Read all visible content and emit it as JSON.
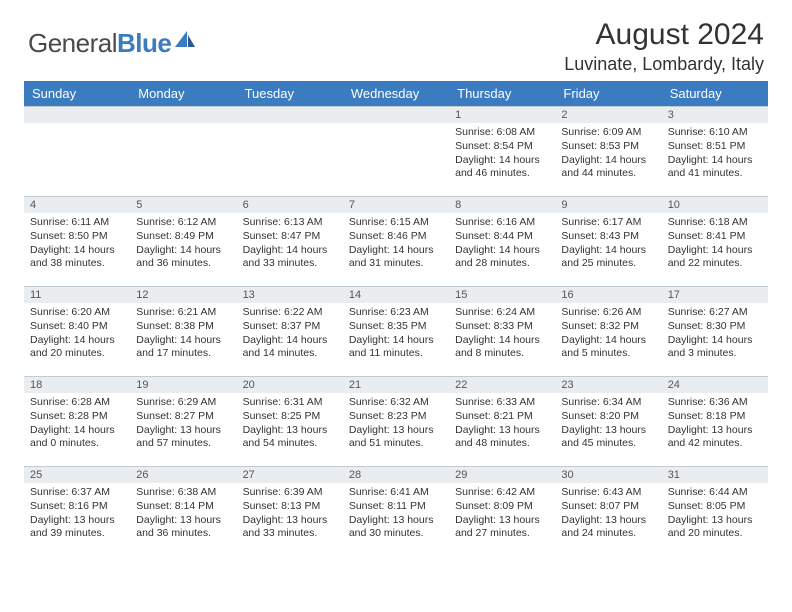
{
  "logo": {
    "text_gray": "General",
    "text_blue": "Blue"
  },
  "title": "August 2024",
  "location": "Luvinate, Lombardy, Italy",
  "colors": {
    "header_bg": "#3b7bbf",
    "header_text": "#ffffff",
    "daynum_bg": "#e9edf0",
    "border": "#c0cbd4",
    "text": "#333333"
  },
  "day_headers": [
    "Sunday",
    "Monday",
    "Tuesday",
    "Wednesday",
    "Thursday",
    "Friday",
    "Saturday"
  ],
  "weeks": [
    [
      {
        "n": "",
        "l": []
      },
      {
        "n": "",
        "l": []
      },
      {
        "n": "",
        "l": []
      },
      {
        "n": "",
        "l": []
      },
      {
        "n": "1",
        "l": [
          "Sunrise: 6:08 AM",
          "Sunset: 8:54 PM",
          "Daylight: 14 hours",
          "and 46 minutes."
        ]
      },
      {
        "n": "2",
        "l": [
          "Sunrise: 6:09 AM",
          "Sunset: 8:53 PM",
          "Daylight: 14 hours",
          "and 44 minutes."
        ]
      },
      {
        "n": "3",
        "l": [
          "Sunrise: 6:10 AM",
          "Sunset: 8:51 PM",
          "Daylight: 14 hours",
          "and 41 minutes."
        ]
      }
    ],
    [
      {
        "n": "4",
        "l": [
          "Sunrise: 6:11 AM",
          "Sunset: 8:50 PM",
          "Daylight: 14 hours",
          "and 38 minutes."
        ]
      },
      {
        "n": "5",
        "l": [
          "Sunrise: 6:12 AM",
          "Sunset: 8:49 PM",
          "Daylight: 14 hours",
          "and 36 minutes."
        ]
      },
      {
        "n": "6",
        "l": [
          "Sunrise: 6:13 AM",
          "Sunset: 8:47 PM",
          "Daylight: 14 hours",
          "and 33 minutes."
        ]
      },
      {
        "n": "7",
        "l": [
          "Sunrise: 6:15 AM",
          "Sunset: 8:46 PM",
          "Daylight: 14 hours",
          "and 31 minutes."
        ]
      },
      {
        "n": "8",
        "l": [
          "Sunrise: 6:16 AM",
          "Sunset: 8:44 PM",
          "Daylight: 14 hours",
          "and 28 minutes."
        ]
      },
      {
        "n": "9",
        "l": [
          "Sunrise: 6:17 AM",
          "Sunset: 8:43 PM",
          "Daylight: 14 hours",
          "and 25 minutes."
        ]
      },
      {
        "n": "10",
        "l": [
          "Sunrise: 6:18 AM",
          "Sunset: 8:41 PM",
          "Daylight: 14 hours",
          "and 22 minutes."
        ]
      }
    ],
    [
      {
        "n": "11",
        "l": [
          "Sunrise: 6:20 AM",
          "Sunset: 8:40 PM",
          "Daylight: 14 hours",
          "and 20 minutes."
        ]
      },
      {
        "n": "12",
        "l": [
          "Sunrise: 6:21 AM",
          "Sunset: 8:38 PM",
          "Daylight: 14 hours",
          "and 17 minutes."
        ]
      },
      {
        "n": "13",
        "l": [
          "Sunrise: 6:22 AM",
          "Sunset: 8:37 PM",
          "Daylight: 14 hours",
          "and 14 minutes."
        ]
      },
      {
        "n": "14",
        "l": [
          "Sunrise: 6:23 AM",
          "Sunset: 8:35 PM",
          "Daylight: 14 hours",
          "and 11 minutes."
        ]
      },
      {
        "n": "15",
        "l": [
          "Sunrise: 6:24 AM",
          "Sunset: 8:33 PM",
          "Daylight: 14 hours",
          "and 8 minutes."
        ]
      },
      {
        "n": "16",
        "l": [
          "Sunrise: 6:26 AM",
          "Sunset: 8:32 PM",
          "Daylight: 14 hours",
          "and 5 minutes."
        ]
      },
      {
        "n": "17",
        "l": [
          "Sunrise: 6:27 AM",
          "Sunset: 8:30 PM",
          "Daylight: 14 hours",
          "and 3 minutes."
        ]
      }
    ],
    [
      {
        "n": "18",
        "l": [
          "Sunrise: 6:28 AM",
          "Sunset: 8:28 PM",
          "Daylight: 14 hours",
          "and 0 minutes."
        ]
      },
      {
        "n": "19",
        "l": [
          "Sunrise: 6:29 AM",
          "Sunset: 8:27 PM",
          "Daylight: 13 hours",
          "and 57 minutes."
        ]
      },
      {
        "n": "20",
        "l": [
          "Sunrise: 6:31 AM",
          "Sunset: 8:25 PM",
          "Daylight: 13 hours",
          "and 54 minutes."
        ]
      },
      {
        "n": "21",
        "l": [
          "Sunrise: 6:32 AM",
          "Sunset: 8:23 PM",
          "Daylight: 13 hours",
          "and 51 minutes."
        ]
      },
      {
        "n": "22",
        "l": [
          "Sunrise: 6:33 AM",
          "Sunset: 8:21 PM",
          "Daylight: 13 hours",
          "and 48 minutes."
        ]
      },
      {
        "n": "23",
        "l": [
          "Sunrise: 6:34 AM",
          "Sunset: 8:20 PM",
          "Daylight: 13 hours",
          "and 45 minutes."
        ]
      },
      {
        "n": "24",
        "l": [
          "Sunrise: 6:36 AM",
          "Sunset: 8:18 PM",
          "Daylight: 13 hours",
          "and 42 minutes."
        ]
      }
    ],
    [
      {
        "n": "25",
        "l": [
          "Sunrise: 6:37 AM",
          "Sunset: 8:16 PM",
          "Daylight: 13 hours",
          "and 39 minutes."
        ]
      },
      {
        "n": "26",
        "l": [
          "Sunrise: 6:38 AM",
          "Sunset: 8:14 PM",
          "Daylight: 13 hours",
          "and 36 minutes."
        ]
      },
      {
        "n": "27",
        "l": [
          "Sunrise: 6:39 AM",
          "Sunset: 8:13 PM",
          "Daylight: 13 hours",
          "and 33 minutes."
        ]
      },
      {
        "n": "28",
        "l": [
          "Sunrise: 6:41 AM",
          "Sunset: 8:11 PM",
          "Daylight: 13 hours",
          "and 30 minutes."
        ]
      },
      {
        "n": "29",
        "l": [
          "Sunrise: 6:42 AM",
          "Sunset: 8:09 PM",
          "Daylight: 13 hours",
          "and 27 minutes."
        ]
      },
      {
        "n": "30",
        "l": [
          "Sunrise: 6:43 AM",
          "Sunset: 8:07 PM",
          "Daylight: 13 hours",
          "and 24 minutes."
        ]
      },
      {
        "n": "31",
        "l": [
          "Sunrise: 6:44 AM",
          "Sunset: 8:05 PM",
          "Daylight: 13 hours",
          "and 20 minutes."
        ]
      }
    ]
  ]
}
